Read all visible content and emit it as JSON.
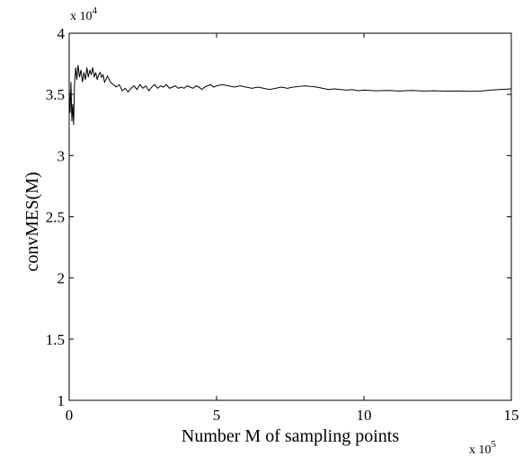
{
  "chart_data": {
    "type": "line",
    "title": "",
    "xlabel": "Number M of sampling points",
    "ylabel": "convMES(M)",
    "x_exponent_label": {
      "base": "x 10",
      "exp": "5"
    },
    "y_exponent_label": {
      "base": "x 10",
      "exp": "4"
    },
    "xlim": [
      0,
      15
    ],
    "ylim": [
      1,
      4
    ],
    "x_ticks": [
      "0",
      "5",
      "10",
      "15"
    ],
    "x_tick_values": [
      0,
      5,
      10,
      15
    ],
    "y_ticks": [
      "1",
      "1.5",
      "2",
      "2.5",
      "3",
      "3.5",
      "4"
    ],
    "y_tick_values": [
      1,
      1.5,
      2,
      2.5,
      3,
      3.5,
      4
    ],
    "grid": false,
    "line_color": "#000000",
    "series": [
      {
        "x": [
          0.0,
          0.03,
          0.06,
          0.09,
          0.12,
          0.15,
          0.18,
          0.22,
          0.26,
          0.3,
          0.35,
          0.4,
          0.45,
          0.5,
          0.55,
          0.6,
          0.65,
          0.7,
          0.75,
          0.8,
          0.85,
          0.9,
          0.95,
          1.0,
          1.05,
          1.1,
          1.15,
          1.2,
          1.3,
          1.4,
          1.5,
          1.6,
          1.7,
          1.8,
          1.9,
          2.0,
          2.1,
          2.2,
          2.3,
          2.4,
          2.5,
          2.6,
          2.7,
          2.8,
          2.9,
          3.0,
          3.1,
          3.2,
          3.3,
          3.4,
          3.5,
          3.6,
          3.7,
          3.8,
          3.9,
          4.0,
          4.1,
          4.2,
          4.3,
          4.4,
          4.5,
          4.6,
          4.7,
          4.8,
          4.9,
          5.0,
          5.2,
          5.4,
          5.6,
          5.8,
          6.0,
          6.2,
          6.4,
          6.6,
          6.8,
          7.0,
          7.2,
          7.4,
          7.6,
          7.8,
          8.0,
          8.2,
          8.4,
          8.6,
          8.8,
          9.0,
          9.2,
          9.4,
          9.6,
          9.8,
          10.0,
          10.4,
          10.8,
          11.2,
          11.6,
          12.0,
          12.4,
          12.8,
          13.2,
          13.6,
          14.0,
          14.3,
          14.6,
          15.0
        ],
        "y": [
          3.55,
          3.35,
          3.6,
          3.28,
          3.42,
          3.25,
          3.58,
          3.72,
          3.62,
          3.74,
          3.64,
          3.7,
          3.6,
          3.68,
          3.62,
          3.72,
          3.64,
          3.7,
          3.66,
          3.72,
          3.64,
          3.68,
          3.62,
          3.66,
          3.68,
          3.64,
          3.66,
          3.6,
          3.65,
          3.6,
          3.58,
          3.56,
          3.58,
          3.53,
          3.55,
          3.52,
          3.55,
          3.57,
          3.54,
          3.58,
          3.55,
          3.57,
          3.53,
          3.56,
          3.58,
          3.55,
          3.57,
          3.56,
          3.58,
          3.55,
          3.56,
          3.57,
          3.55,
          3.56,
          3.55,
          3.57,
          3.56,
          3.55,
          3.57,
          3.56,
          3.54,
          3.56,
          3.57,
          3.58,
          3.56,
          3.57,
          3.58,
          3.57,
          3.56,
          3.57,
          3.56,
          3.55,
          3.56,
          3.55,
          3.54,
          3.55,
          3.56,
          3.55,
          3.56,
          3.565,
          3.57,
          3.565,
          3.56,
          3.55,
          3.54,
          3.545,
          3.54,
          3.535,
          3.54,
          3.53,
          3.535,
          3.53,
          3.532,
          3.528,
          3.532,
          3.528,
          3.53,
          3.526,
          3.528,
          3.525,
          3.528,
          3.535,
          3.54,
          3.545
        ]
      }
    ]
  }
}
